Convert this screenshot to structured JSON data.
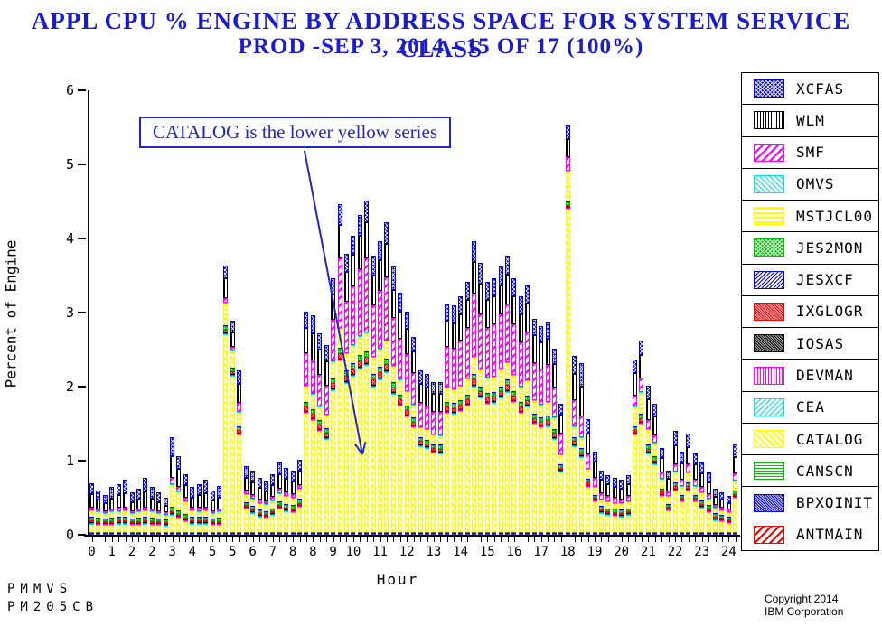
{
  "title": {
    "line1": "APPL CPU % ENGINE BY ADDRESS SPACE FOR SYSTEM SERVICE CLASS",
    "line2": "PROD -SEP 3, 2014 - 15 OF 17 (100%)"
  },
  "annotation": {
    "text": "CATALOG is the lower yellow series"
  },
  "footer": {
    "left_line1": "PMMVS",
    "left_line2": "PM205CB",
    "right_line1": "Copyright 2014",
    "right_line2": "IBM Corporation"
  },
  "colors": {
    "title_blue": "#1b1bd0",
    "annotation_blue": "#2424cd",
    "axis_black": "#000000",
    "series": {
      "xcfas": "#0000e8",
      "wlm": "#000000",
      "smf": "#ff00ff",
      "omvs": "#00e5e5",
      "mstjcl00": "#ffff00",
      "jes2mon": "#00c000",
      "jesxcf": "#0000e8",
      "ixglogr": "#ff0000",
      "iosas": "#000000",
      "devman": "#ff00ff",
      "cea": "#00e5e5",
      "catalog": "#ffff00",
      "canscn": "#00c000",
      "bpxoinit": "#0000e8",
      "antmain": "#ff0000"
    }
  },
  "legend": [
    {
      "label": "XCFAS",
      "series": "xcfas",
      "pattern": "blue-crosshatch"
    },
    {
      "label": "WLM",
      "series": "wlm",
      "pattern": "black-vertical-lines"
    },
    {
      "label": "SMF",
      "series": "smf",
      "pattern": "magenta-diagonal-stripes"
    },
    {
      "label": "OMVS",
      "series": "omvs",
      "pattern": "cyan-backslash-stripes"
    },
    {
      "label": "MSTJCL00",
      "series": "mstjcl00",
      "pattern": "yellow-horizontal-lines"
    },
    {
      "label": "JES2MON",
      "series": "jes2mon",
      "pattern": "green-crosshatch"
    },
    {
      "label": "JESXCF",
      "series": "jesxcf",
      "pattern": "blue-diagonal-stripes"
    },
    {
      "label": "IXGLOGR",
      "series": "ixglogr",
      "pattern": "red-dense-crosshatch"
    },
    {
      "label": "IOSAS",
      "series": "iosas",
      "pattern": "black-dense-crosshatch"
    },
    {
      "label": "DEVMAN",
      "series": "devman",
      "pattern": "magenta-vertical-lines"
    },
    {
      "label": "CEA",
      "series": "cea",
      "pattern": "cyan-diagonal-stripes"
    },
    {
      "label": "CATALOG",
      "series": "catalog",
      "pattern": "yellow-backslash-stripes"
    },
    {
      "label": "CANSCN",
      "series": "canscn",
      "pattern": "green-horizontal-lines"
    },
    {
      "label": "BPXOINIT",
      "series": "bpxoinit",
      "pattern": "blue-dense-crosshatch"
    },
    {
      "label": "ANTMAIN",
      "series": "antmain",
      "pattern": "red-diagonal-stripes"
    }
  ],
  "y_axis": {
    "label": "Percent of Engine",
    "tick_labels": [
      "0",
      "1",
      "2",
      "3",
      "4",
      "5",
      "6"
    ],
    "min": 0,
    "max": 6
  },
  "x_axis": {
    "label": "Hour",
    "tick_count": 97,
    "label_tick_indices": [
      0,
      3,
      6,
      9,
      12,
      15,
      18,
      21,
      24,
      27,
      30,
      33,
      36,
      39,
      43,
      47,
      51,
      55,
      59,
      63,
      67,
      71,
      75,
      79,
      83,
      87,
      91,
      95
    ],
    "tick_labels": [
      "0",
      "1",
      "2",
      "2",
      "3",
      "4",
      "5",
      "5",
      "6",
      "7",
      "8",
      "8",
      "9",
      "10",
      "11",
      "12",
      "13",
      "14",
      "15",
      "16",
      "17",
      "18",
      "19",
      "20",
      "21",
      "22",
      "23",
      "24"
    ]
  },
  "chart_data": {
    "type": "bar",
    "stacked": true,
    "title": "APPL CPU % ENGINE BY ADDRESS SPACE FOR SYSTEM SERVICE CLASS",
    "xlabel": "Hour",
    "ylabel": "Percent of Engine",
    "ylim": [
      0,
      6
    ],
    "x_interval": "15-minutes",
    "x_range_hours": [
      0,
      24
    ],
    "bar_count": 97,
    "legend_position": "right",
    "grid": false,
    "stack_order_bottom_to_top": [
      "antmain",
      "bpxoinit",
      "canscn",
      "catalog",
      "cea",
      "devman",
      "iosas",
      "ixglogr",
      "jes2mon",
      "jesxcf",
      "mstjcl00",
      "omvs",
      "smf",
      "wlm",
      "xcfas"
    ],
    "minor_series": [
      "antmain",
      "bpxoinit",
      "canscn",
      "cea",
      "devman",
      "iosas",
      "jesxcf",
      "omvs"
    ],
    "minor_series_value": 0.01,
    "series": {
      "catalog": [
        0.1,
        0.09,
        0.08,
        0.09,
        0.1,
        0.1,
        0.08,
        0.09,
        0.1,
        0.09,
        0.08,
        0.07,
        0.22,
        0.18,
        0.14,
        0.1,
        0.1,
        0.1,
        0.08,
        0.09,
        2.66,
        2.1,
        1.3,
        0.3,
        0.25,
        0.2,
        0.18,
        0.22,
        0.3,
        0.27,
        0.26,
        0.33,
        1.6,
        1.5,
        1.35,
        1.25,
        1.9,
        2.3,
        2.0,
        2.1,
        2.2,
        2.25,
        1.95,
        2.05,
        2.15,
        1.85,
        1.7,
        1.55,
        1.4,
        1.15,
        1.12,
        1.06,
        1.05,
        1.6,
        1.58,
        1.62,
        1.7,
        1.95,
        1.8,
        1.72,
        1.73,
        1.8,
        1.88,
        1.75,
        1.6,
        1.68,
        1.45,
        1.4,
        1.42,
        1.25,
        0.8,
        4.35,
        1.15,
        1.0,
        0.6,
        0.4,
        0.25,
        0.22,
        0.21,
        0.2,
        0.22,
        1.3,
        1.45,
        1.05,
        0.9,
        0.48,
        0.28,
        0.55,
        0.4,
        0.55,
        0.4,
        0.32,
        0.26,
        0.15,
        0.13,
        0.11,
        0.45
      ],
      "ixglogr": [
        0.02,
        0.02,
        0.02,
        0.02,
        0.02,
        0.02,
        0.02,
        0.02,
        0.02,
        0.02,
        0.02,
        0.02,
        0.03,
        0.03,
        0.02,
        0.02,
        0.02,
        0.02,
        0.02,
        0.02,
        0.03,
        0.03,
        0.04,
        0.02,
        0.02,
        0.02,
        0.02,
        0.02,
        0.02,
        0.02,
        0.02,
        0.03,
        0.06,
        0.06,
        0.06,
        0.05,
        0.07,
        0.08,
        0.07,
        0.07,
        0.08,
        0.08,
        0.07,
        0.07,
        0.08,
        0.07,
        0.06,
        0.06,
        0.05,
        0.04,
        0.04,
        0.04,
        0.04,
        0.06,
        0.06,
        0.06,
        0.06,
        0.07,
        0.07,
        0.06,
        0.06,
        0.07,
        0.07,
        0.06,
        0.06,
        0.06,
        0.05,
        0.05,
        0.05,
        0.05,
        0.03,
        0.03,
        0.04,
        0.04,
        0.03,
        0.02,
        0.02,
        0.02,
        0.02,
        0.02,
        0.02,
        0.04,
        0.05,
        0.04,
        0.03,
        0.03,
        0.02,
        0.03,
        0.02,
        0.03,
        0.02,
        0.02,
        0.02,
        0.02,
        0.02,
        0.02,
        0.03
      ],
      "jes2mon": [
        0.03,
        0.03,
        0.03,
        0.03,
        0.03,
        0.03,
        0.03,
        0.03,
        0.03,
        0.03,
        0.03,
        0.03,
        0.04,
        0.04,
        0.03,
        0.03,
        0.03,
        0.03,
        0.03,
        0.03,
        0.05,
        0.04,
        0.04,
        0.03,
        0.03,
        0.03,
        0.03,
        0.03,
        0.04,
        0.03,
        0.03,
        0.04,
        0.05,
        0.05,
        0.05,
        0.05,
        0.06,
        0.06,
        0.06,
        0.06,
        0.06,
        0.06,
        0.06,
        0.06,
        0.06,
        0.05,
        0.05,
        0.05,
        0.05,
        0.04,
        0.04,
        0.04,
        0.04,
        0.05,
        0.05,
        0.05,
        0.05,
        0.06,
        0.05,
        0.05,
        0.05,
        0.05,
        0.06,
        0.05,
        0.05,
        0.05,
        0.05,
        0.05,
        0.05,
        0.04,
        0.04,
        0.04,
        0.04,
        0.04,
        0.04,
        0.03,
        0.03,
        0.03,
        0.03,
        0.03,
        0.03,
        0.04,
        0.05,
        0.04,
        0.04,
        0.03,
        0.03,
        0.04,
        0.03,
        0.04,
        0.03,
        0.03,
        0.03,
        0.03,
        0.03,
        0.02,
        0.03
      ],
      "mstjcl00": [
        0.08,
        0.07,
        0.06,
        0.07,
        0.07,
        0.08,
        0.06,
        0.07,
        0.08,
        0.07,
        0.06,
        0.05,
        0.3,
        0.24,
        0.16,
        0.08,
        0.07,
        0.08,
        0.06,
        0.07,
        0.3,
        0.22,
        0.18,
        0.1,
        0.09,
        0.08,
        0.08,
        0.09,
        0.1,
        0.1,
        0.09,
        0.12,
        0.2,
        0.2,
        0.18,
        0.17,
        0.22,
        0.25,
        0.22,
        0.23,
        0.25,
        0.25,
        0.22,
        0.23,
        0.24,
        0.21,
        0.19,
        0.18,
        0.16,
        0.13,
        0.13,
        0.12,
        0.12,
        0.18,
        0.18,
        0.19,
        0.2,
        0.23,
        0.21,
        0.2,
        0.2,
        0.21,
        0.22,
        0.2,
        0.19,
        0.2,
        0.17,
        0.16,
        0.17,
        0.15,
        0.12,
        0.4,
        0.14,
        0.14,
        0.12,
        0.1,
        0.08,
        0.08,
        0.07,
        0.07,
        0.08,
        0.25,
        0.28,
        0.2,
        0.18,
        0.12,
        0.09,
        0.14,
        0.11,
        0.13,
        0.11,
        0.1,
        0.08,
        0.06,
        0.05,
        0.05,
        0.12
      ],
      "smf": [
        0.04,
        0.03,
        0.03,
        0.03,
        0.04,
        0.04,
        0.03,
        0.03,
        0.04,
        0.03,
        0.03,
        0.03,
        0.08,
        0.06,
        0.05,
        0.04,
        0.04,
        0.04,
        0.03,
        0.03,
        0.06,
        0.05,
        0.12,
        0.05,
        0.05,
        0.05,
        0.04,
        0.05,
        0.06,
        0.05,
        0.05,
        0.06,
        0.45,
        0.45,
        0.42,
        0.4,
        0.55,
        0.95,
        0.7,
        0.8,
        0.9,
        1.0,
        0.7,
        0.78,
        0.85,
        0.65,
        0.55,
        0.5,
        0.42,
        0.32,
        0.31,
        0.3,
        0.31,
        0.55,
        0.55,
        0.6,
        0.68,
        0.85,
        0.75,
        0.66,
        0.7,
        0.75,
        0.78,
        0.68,
        0.6,
        0.65,
        0.5,
        0.48,
        0.5,
        0.4,
        0.28,
        0.18,
        0.35,
        0.28,
        0.2,
        0.12,
        0.08,
        0.07,
        0.07,
        0.06,
        0.07,
        0.15,
        0.18,
        0.12,
        0.1,
        0.08,
        0.06,
        0.1,
        0.08,
        0.1,
        0.08,
        0.07,
        0.06,
        0.04,
        0.04,
        0.03,
        0.1
      ],
      "wlm": [
        0.18,
        0.13,
        0.1,
        0.15,
        0.17,
        0.19,
        0.12,
        0.14,
        0.22,
        0.15,
        0.12,
        0.09,
        0.3,
        0.24,
        0.17,
        0.13,
        0.17,
        0.19,
        0.14,
        0.16,
        0.27,
        0.2,
        0.26,
        0.17,
        0.17,
        0.15,
        0.14,
        0.16,
        0.19,
        0.18,
        0.17,
        0.19,
        0.34,
        0.36,
        0.34,
        0.33,
        0.35,
        0.45,
        0.4,
        0.42,
        0.45,
        0.48,
        0.4,
        0.42,
        0.45,
        0.38,
        0.36,
        0.34,
        0.3,
        0.26,
        0.25,
        0.24,
        0.24,
        0.34,
        0.34,
        0.36,
        0.38,
        0.43,
        0.41,
        0.38,
        0.38,
        0.39,
        0.4,
        0.38,
        0.38,
        0.38,
        0.38,
        0.36,
        0.36,
        0.32,
        0.26,
        0.25,
        0.35,
        0.4,
        0.28,
        0.22,
        0.18,
        0.16,
        0.15,
        0.14,
        0.16,
        0.3,
        0.32,
        0.28,
        0.25,
        0.2,
        0.17,
        0.25,
        0.22,
        0.24,
        0.21,
        0.19,
        0.16,
        0.11,
        0.1,
        0.09,
        0.22
      ],
      "xcfas": [
        0.15,
        0.13,
        0.12,
        0.15,
        0.15,
        0.18,
        0.13,
        0.14,
        0.18,
        0.15,
        0.13,
        0.11,
        0.25,
        0.18,
        0.15,
        0.14,
        0.15,
        0.18,
        0.14,
        0.16,
        0.17,
        0.15,
        0.18,
        0.16,
        0.16,
        0.14,
        0.13,
        0.15,
        0.16,
        0.15,
        0.15,
        0.15,
        0.22,
        0.25,
        0.22,
        0.22,
        0.22,
        0.28,
        0.25,
        0.26,
        0.28,
        0.3,
        0.27,
        0.26,
        0.29,
        0.31,
        0.26,
        0.24,
        0.19,
        0.18,
        0.18,
        0.17,
        0.17,
        0.24,
        0.24,
        0.24,
        0.25,
        0.28,
        0.28,
        0.25,
        0.25,
        0.25,
        0.26,
        0.25,
        0.24,
        0.25,
        0.22,
        0.22,
        0.22,
        0.21,
        0.14,
        0.19,
        0.25,
        0.32,
        0.2,
        0.13,
        0.13,
        0.12,
        0.12,
        0.12,
        0.12,
        0.19,
        0.19,
        0.19,
        0.17,
        0.13,
        0.12,
        0.19,
        0.16,
        0.18,
        0.15,
        0.14,
        0.13,
        0.11,
        0.1,
        0.1,
        0.17
      ]
    }
  }
}
